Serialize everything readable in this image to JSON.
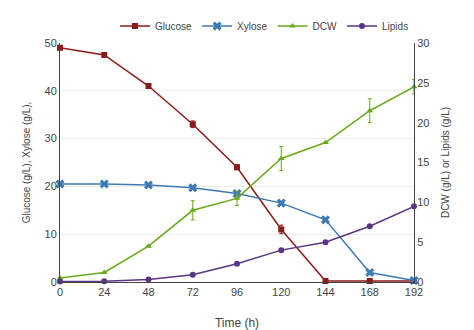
{
  "chart_data": {
    "type": "line",
    "xlabel": "Time (h)",
    "ylabel": "Glucose (g/L), Xylose (g/L),",
    "y2label": "DCW (g/L) or Lipids (g/L)",
    "x": [
      0,
      24,
      48,
      72,
      96,
      120,
      144,
      168,
      192
    ],
    "xlim": [
      0,
      192
    ],
    "xticks": [
      0,
      24,
      48,
      72,
      96,
      120,
      144,
      168,
      192
    ],
    "ylim": [
      0,
      50
    ],
    "yticks": [
      0,
      10,
      20,
      30,
      40,
      50
    ],
    "y2lim": [
      0,
      30
    ],
    "y2ticks": [
      0,
      5,
      10,
      15,
      20,
      25,
      30
    ],
    "grid": true,
    "legend": "upper right",
    "series": [
      {
        "name": "Glucose",
        "color": "#8B1A1A",
        "marker": "square",
        "values": [
          49.0,
          47.5,
          41.0,
          33.0,
          24.0,
          11.0,
          0.2,
          0.2,
          0.2
        ],
        "error": [
          0.0,
          0.0,
          0.0,
          0.7,
          0.5,
          0.9,
          0.0,
          0.0,
          0.0
        ]
      },
      {
        "name": "Xylose",
        "color": "#3d7ab5",
        "marker": "x",
        "values": [
          20.5,
          20.5,
          20.3,
          19.7,
          18.5,
          16.5,
          13.0,
          2.0,
          0.3
        ]
      },
      {
        "name": "DCW",
        "color": "#6aaa1a",
        "marker": "triangle-up",
        "axis": "y2",
        "values": [
          0.5,
          1.2,
          4.5,
          9.0,
          10.5,
          15.5,
          17.5,
          21.5,
          24.5
        ],
        "error": [
          0.0,
          0.0,
          0.0,
          1.2,
          0.9,
          1.5,
          0.0,
          1.5,
          0.9
        ]
      },
      {
        "name": "Lipids",
        "color": "#5a3585",
        "marker": "circle",
        "axis": "y2",
        "values": [
          0.05,
          0.1,
          0.3,
          0.9,
          2.3,
          4.0,
          5.0,
          7.0,
          9.5
        ]
      }
    ]
  }
}
